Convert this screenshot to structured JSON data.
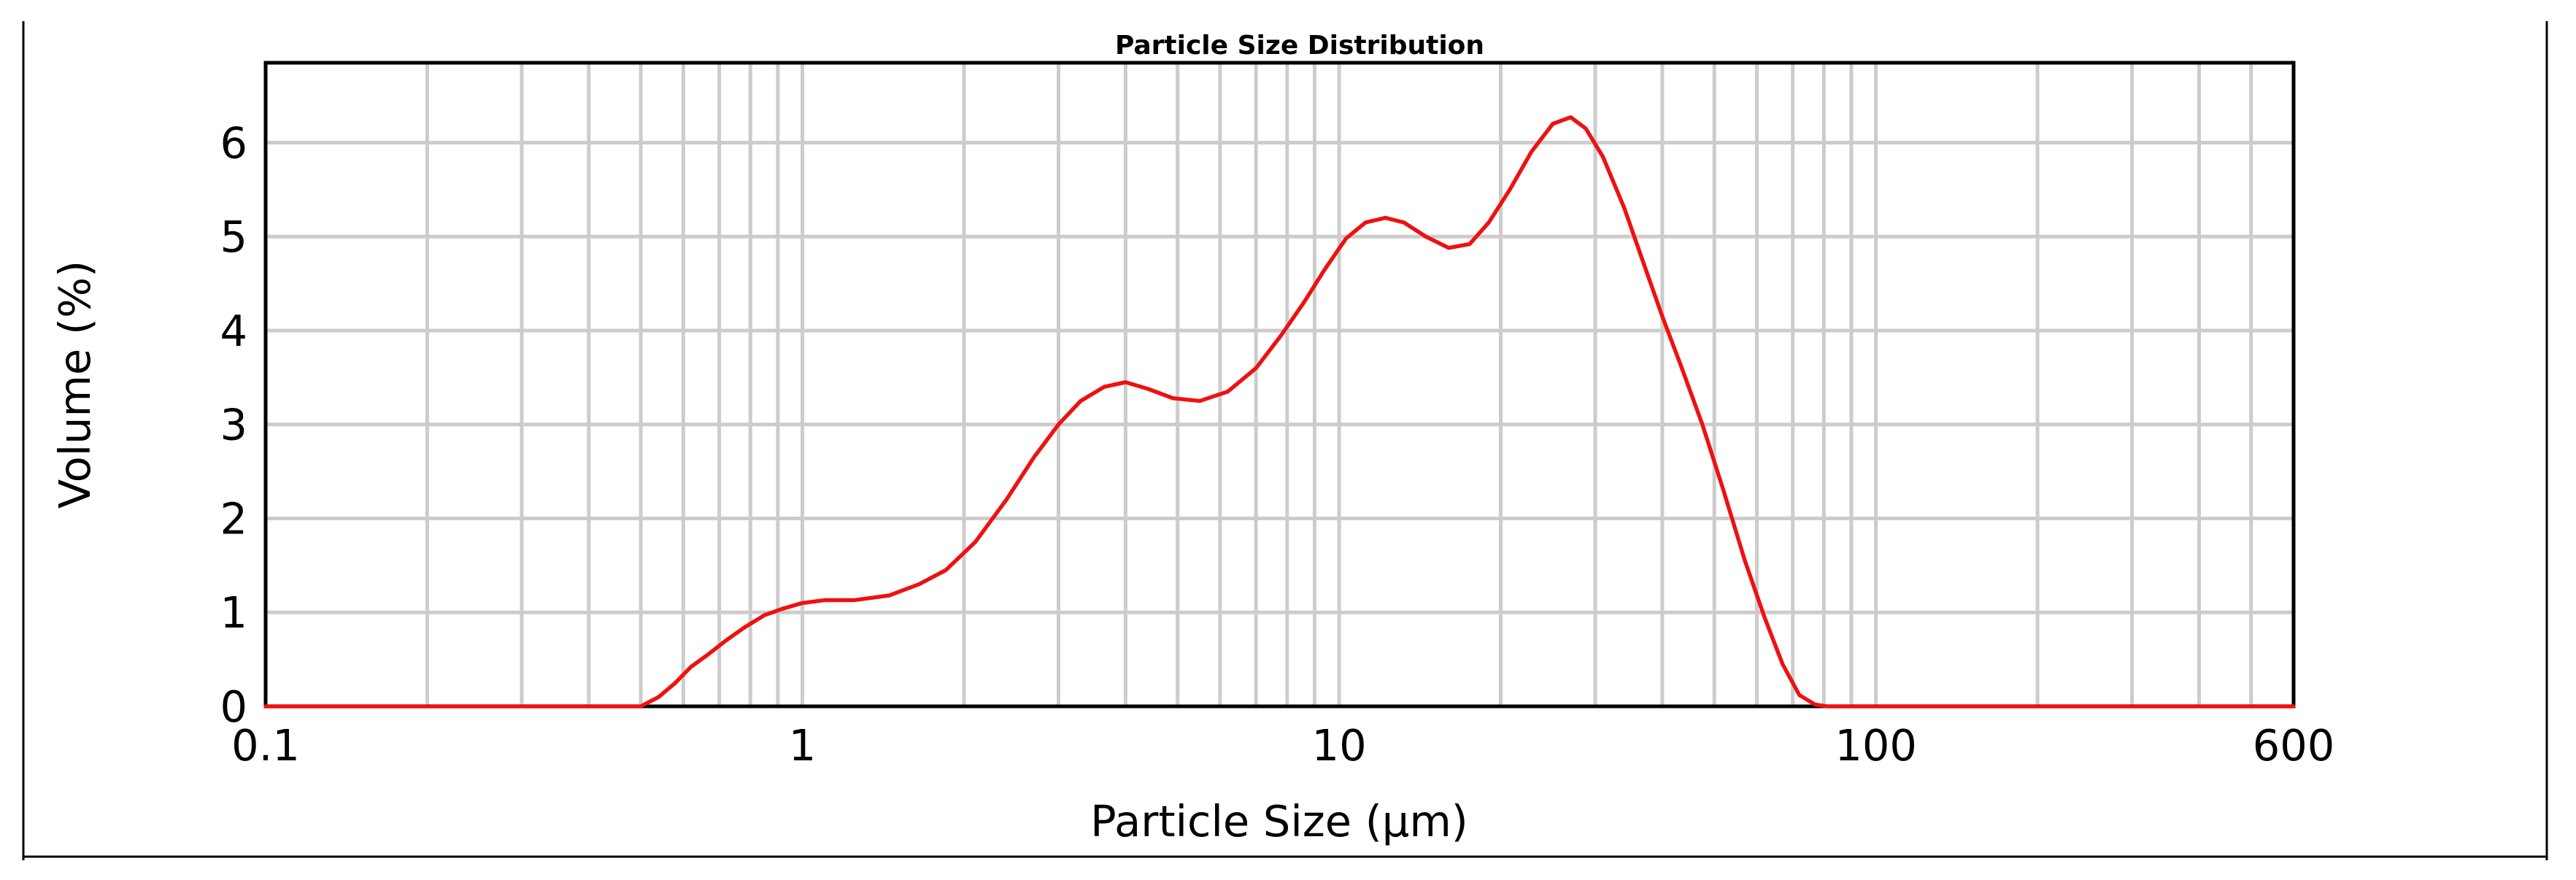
{
  "chart_data": {
    "type": "line",
    "title": "Particle Size Distribution",
    "xlabel": "Particle Size (µm)",
    "ylabel": "Volume (%)",
    "x_scale": "log",
    "xlim": [
      0.1,
      600
    ],
    "ylim": [
      0,
      6.85
    ],
    "x_ticks": [
      {
        "value": 0.1,
        "label": "0.1"
      },
      {
        "value": 1,
        "label": "1"
      },
      {
        "value": 10,
        "label": "10"
      },
      {
        "value": 100,
        "label": "100"
      },
      {
        "value": 600,
        "label": "600"
      }
    ],
    "y_ticks": [
      {
        "value": 0,
        "label": "0"
      },
      {
        "value": 1,
        "label": "1"
      },
      {
        "value": 2,
        "label": "2"
      },
      {
        "value": 3,
        "label": "3"
      },
      {
        "value": 4,
        "label": "4"
      },
      {
        "value": 5,
        "label": "5"
      },
      {
        "value": 6,
        "label": "6"
      }
    ],
    "grid": true,
    "x_minor_gridlines": [
      0.2,
      0.3,
      0.4,
      0.5,
      0.6,
      0.7,
      0.8,
      0.9,
      2,
      3,
      4,
      5,
      6,
      7,
      8,
      9,
      20,
      30,
      40,
      50,
      60,
      70,
      80,
      90,
      200,
      300,
      400,
      500
    ],
    "legend": "none",
    "series": [
      {
        "color": "#ee1111",
        "x": [
          0.1,
          0.5,
          0.54,
          0.58,
          0.62,
          0.67,
          0.72,
          0.78,
          0.85,
          0.92,
          1.0,
          1.1,
          1.25,
          1.45,
          1.65,
          1.85,
          2.1,
          2.4,
          2.7,
          3.0,
          3.3,
          3.65,
          4.0,
          4.4,
          4.9,
          5.5,
          6.2,
          7.0,
          7.8,
          8.6,
          9.4,
          10.3,
          11.2,
          12.2,
          13.2,
          14.5,
          16.0,
          17.5,
          19.0,
          20.8,
          22.8,
          25.0,
          27.0,
          28.8,
          31.0,
          34.0,
          37.0,
          40.0,
          43.5,
          47.5,
          52.0,
          57.0,
          62.0,
          67.0,
          72.0,
          77.0,
          81.0,
          85.0,
          600
        ],
        "y": [
          0,
          0,
          0.1,
          0.25,
          0.42,
          0.56,
          0.7,
          0.84,
          0.97,
          1.04,
          1.1,
          1.13,
          1.13,
          1.18,
          1.3,
          1.45,
          1.75,
          2.2,
          2.65,
          3.0,
          3.25,
          3.4,
          3.45,
          3.38,
          3.28,
          3.25,
          3.35,
          3.6,
          3.95,
          4.3,
          4.65,
          4.98,
          5.15,
          5.2,
          5.15,
          5.0,
          4.88,
          4.92,
          5.15,
          5.5,
          5.9,
          6.2,
          6.27,
          6.15,
          5.85,
          5.3,
          4.7,
          4.15,
          3.6,
          3.0,
          2.3,
          1.55,
          0.95,
          0.45,
          0.12,
          0.02,
          0,
          0,
          0
        ]
      }
    ]
  }
}
